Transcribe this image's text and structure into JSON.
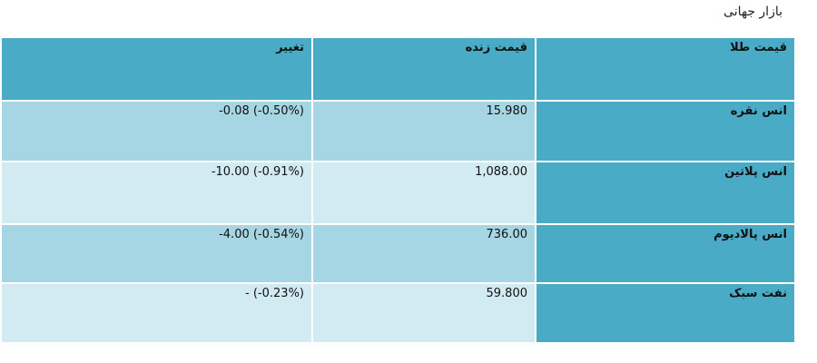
{
  "page": {
    "caption": "بازار جهانی"
  },
  "table": {
    "headers": {
      "name": "قیمت طلا",
      "price": "قیمت زنده",
      "change": "تغییر"
    },
    "rows": [
      {
        "name": "انس نقره",
        "price": "15.980",
        "change": "-0.08  (-0.50%)",
        "shade": "dark"
      },
      {
        "name": "انس پلاتین",
        "price": "1,088.00",
        "change": "-10.00  (-0.91%)",
        "shade": "light"
      },
      {
        "name": "انس پالادیوم",
        "price": "736.00",
        "change": "-4.00  (-0.54%)",
        "shade": "dark"
      },
      {
        "name": "نفت سبک",
        "price": "59.800",
        "change": "-  (-0.23%)",
        "shade": "light"
      }
    ]
  },
  "colors": {
    "header": "#4aabc6",
    "row_dark": "#a6d5e3",
    "row_light": "#d2eaf2"
  }
}
